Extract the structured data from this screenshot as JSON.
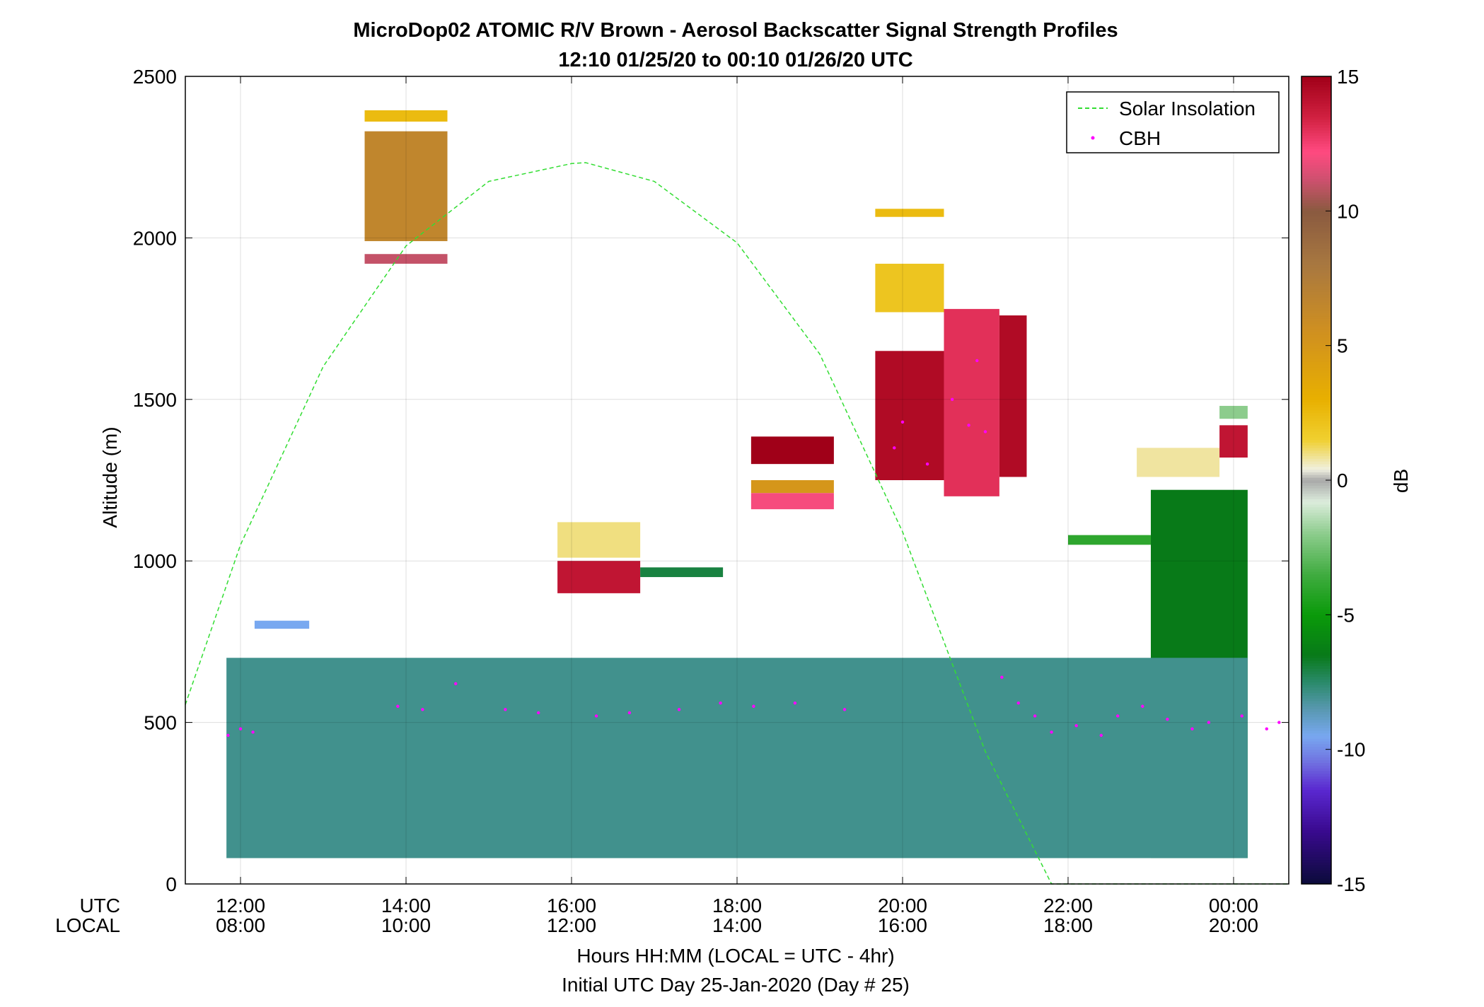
{
  "chart_data": {
    "type": "heatmap",
    "title": "MicroDop02 ATOMIC R/V Brown - Aerosol Backscatter Signal Strength Profiles",
    "subtitle": "12:10 01/25/20 to 00:10 01/26/20  UTC",
    "ylabel": "Altitude (m)",
    "xlabel": "Hours HH:MM  (LOCAL = UTC - 4hr)",
    "xlabel2": "Initial UTC Day 25-Jan-2020 (Day # 25)",
    "xrow_labels": [
      "UTC",
      "LOCAL"
    ],
    "x_unit": "hours since 00:00 UTC 25-Jan-2020",
    "xlim": [
      11.333,
      24.667
    ],
    "ylim": [
      0,
      2500
    ],
    "yticks": [
      0,
      500,
      1000,
      1500,
      2000,
      2500
    ],
    "xticks": [
      12,
      14,
      16,
      18,
      20,
      22,
      24
    ],
    "xticklabels_utc": [
      "12:00",
      "14:00",
      "16:00",
      "18:00",
      "20:00",
      "22:00",
      "00:00"
    ],
    "xticklabels_local": [
      "08:00",
      "10:00",
      "12:00",
      "14:00",
      "16:00",
      "18:00",
      "20:00"
    ],
    "grid": true,
    "legend_position": "top-right",
    "legend": [
      {
        "name": "Solar Insolation",
        "style": "dashed",
        "color": "#33dd33"
      },
      {
        "name": "CBH",
        "style": "dots",
        "color": "#ff00ff"
      }
    ],
    "colorbar": {
      "label": "dB",
      "range": [
        -15,
        15
      ],
      "ticks": [
        -15,
        -10,
        -5,
        0,
        5,
        10,
        15
      ],
      "stops": [
        [
          -15,
          "#0b0b3a"
        ],
        [
          -13,
          "#3a0a90"
        ],
        [
          -11.5,
          "#5a28d0"
        ],
        [
          -10.5,
          "#7070e0"
        ],
        [
          -9.5,
          "#78a8f0"
        ],
        [
          -8.5,
          "#5898b0"
        ],
        [
          -7.5,
          "#2a8a6a"
        ],
        [
          -6.5,
          "#087a18"
        ],
        [
          -5,
          "#0a9a0a"
        ],
        [
          -3.5,
          "#40ac40"
        ],
        [
          -2,
          "#8ccc8c"
        ],
        [
          -0.8,
          "#dcecdc"
        ],
        [
          0,
          "#a8a8a8"
        ],
        [
          0.4,
          "#f0f0e0"
        ],
        [
          1.5,
          "#f0d030"
        ],
        [
          3,
          "#e8b000"
        ],
        [
          5.5,
          "#d09020"
        ],
        [
          8,
          "#a87840"
        ],
        [
          10,
          "#8a5a40"
        ],
        [
          11.2,
          "#d05070"
        ],
        [
          12.2,
          "#ff4a80"
        ],
        [
          13.5,
          "#d02040"
        ],
        [
          15,
          "#a00018"
        ]
      ]
    },
    "solar_insolation": {
      "x": [
        11.333,
        12,
        13,
        14,
        15,
        16,
        16.17,
        17,
        18,
        19,
        20,
        21,
        21.8,
        24.667
      ],
      "y": [
        555,
        1050,
        1602,
        1975,
        2175,
        2230,
        2233,
        2175,
        1985,
        1640,
        1090,
        410,
        0,
        0
      ]
    },
    "cells": [
      {
        "x0": 12.17,
        "x1": 12.83,
        "y0": 790,
        "y1": 815,
        "dB": -9.5
      },
      {
        "x0": 13.5,
        "x1": 14.5,
        "y0": 2360,
        "y1": 2395,
        "dB": 2.5
      },
      {
        "x0": 13.5,
        "x1": 14.5,
        "y0": 1990,
        "y1": 2330,
        "dB": 6.5
      },
      {
        "x0": 13.5,
        "x1": 14.5,
        "y0": 1920,
        "y1": 1950,
        "dB": 11
      },
      {
        "x0": 15.83,
        "x1": 16.83,
        "y0": 1010,
        "y1": 1120,
        "dB": 1
      },
      {
        "x0": 15.83,
        "x1": 16.83,
        "y0": 900,
        "y1": 1000,
        "dB": 14
      },
      {
        "x0": 16.83,
        "x1": 17.83,
        "y0": 950,
        "y1": 980,
        "dB": -7
      },
      {
        "x0": 18.17,
        "x1": 19.17,
        "y0": 1210,
        "y1": 1250,
        "dB": 5
      },
      {
        "x0": 18.17,
        "x1": 19.17,
        "y0": 1160,
        "y1": 1210,
        "dB": 12
      },
      {
        "x0": 18.17,
        "x1": 19.17,
        "y0": 1300,
        "y1": 1385,
        "dB": 15
      },
      {
        "x0": 19.67,
        "x1": 20.5,
        "y0": 2065,
        "y1": 2090,
        "dB": 2.5
      },
      {
        "x0": 19.67,
        "x1": 20.5,
        "y0": 1770,
        "y1": 1920,
        "dB": 2
      },
      {
        "x0": 19.67,
        "x1": 20.5,
        "y0": 1250,
        "y1": 1650,
        "dB": 14.5
      },
      {
        "x0": 20.5,
        "x1": 21.17,
        "y0": 1200,
        "y1": 1780,
        "dB": 13
      },
      {
        "x0": 21.17,
        "x1": 21.5,
        "y0": 1260,
        "y1": 1760,
        "dB": 14.5
      },
      {
        "x0": 22.83,
        "x1": 23.83,
        "y0": 1260,
        "y1": 1350,
        "dB": 0.8
      },
      {
        "x0": 23.83,
        "x1": 24.17,
        "y0": 1320,
        "y1": 1420,
        "dB": 14
      },
      {
        "x0": 23.83,
        "x1": 24.17,
        "y0": 1440,
        "y1": 1480,
        "dB": -2
      },
      {
        "x0": 22,
        "x1": 23,
        "y0": 1050,
        "y1": 1080,
        "dB": -4
      },
      {
        "x0": 23,
        "x1": 24.17,
        "y0": 80,
        "y1": 1220,
        "dB": -6.5
      },
      {
        "x0": 11.83,
        "x1": 24.17,
        "y0": 80,
        "y1": 700,
        "dB": -8
      }
    ],
    "cbh_points": [
      [
        11.85,
        460
      ],
      [
        12.0,
        480
      ],
      [
        12.15,
        470
      ],
      [
        13.9,
        550
      ],
      [
        14.2,
        540
      ],
      [
        14.6,
        620
      ],
      [
        15.2,
        540
      ],
      [
        15.6,
        530
      ],
      [
        16.3,
        520
      ],
      [
        16.7,
        530
      ],
      [
        17.3,
        540
      ],
      [
        17.8,
        560
      ],
      [
        18.2,
        550
      ],
      [
        18.7,
        560
      ],
      [
        19.3,
        540
      ],
      [
        19.9,
        1350
      ],
      [
        20.0,
        1430
      ],
      [
        20.3,
        1300
      ],
      [
        20.6,
        1500
      ],
      [
        20.8,
        1420
      ],
      [
        20.9,
        1620
      ],
      [
        21.0,
        1400
      ],
      [
        21.2,
        640
      ],
      [
        21.4,
        560
      ],
      [
        21.6,
        520
      ],
      [
        21.8,
        470
      ],
      [
        22.1,
        490
      ],
      [
        22.4,
        460
      ],
      [
        22.6,
        520
      ],
      [
        22.9,
        550
      ],
      [
        23.2,
        510
      ],
      [
        23.5,
        480
      ],
      [
        23.7,
        500
      ],
      [
        24.1,
        520
      ],
      [
        24.4,
        480
      ],
      [
        24.55,
        500
      ]
    ]
  }
}
